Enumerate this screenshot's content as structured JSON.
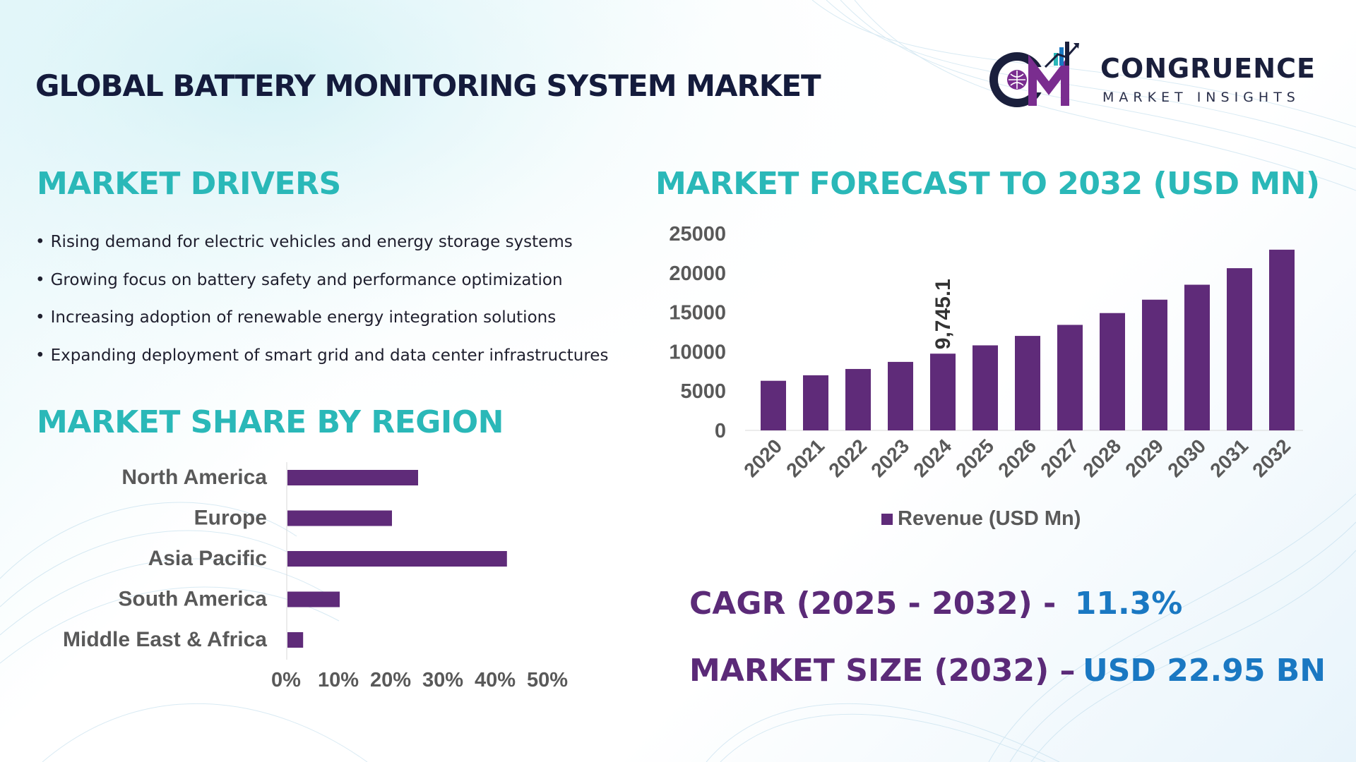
{
  "header": {
    "title": "GLOBAL BATTERY MONITORING SYSTEM MARKET"
  },
  "logo": {
    "monogram": "CM",
    "name": "CONGRUENCE",
    "tagline": "MARKET INSIGHTS"
  },
  "drivers": {
    "title": "MARKET DRIVERS",
    "bullet": "•",
    "items": [
      "Rising demand for electric vehicles and energy storage systems",
      "Growing focus on battery safety and performance optimization",
      "Increasing adoption of renewable energy integration solutions",
      "Expanding deployment of smart grid and data center infrastructures"
    ]
  },
  "region": {
    "title": "MARKET SHARE BY REGION"
  },
  "forecast": {
    "title": "MARKET FORECAST TO 2032 (USD MN)"
  },
  "kpis": {
    "cagr_label": "CAGR (2025 - 2032) -",
    "cagr_value": "11.3%",
    "size_label": "MARKET SIZE (2032) –",
    "size_value": "USD 22.95 BN"
  },
  "colors": {
    "bar": "#5f2b79",
    "accent": "#2ab8b8",
    "kpi_label": "#5b2a78",
    "kpi_value": "#1a78c2",
    "axis_text": "#595959"
  },
  "chart_data": [
    {
      "type": "bar",
      "orientation": "horizontal",
      "title": "MARKET SHARE BY REGION",
      "categories": [
        "North America",
        "Europe",
        "Asia Pacific",
        "South America",
        "Middle East & Africa"
      ],
      "values": [
        25,
        20,
        42,
        10,
        3
      ],
      "unit": "%",
      "xlim": [
        0,
        50
      ],
      "xticks": [
        "0%",
        "10%",
        "20%",
        "30%",
        "40%",
        "50%"
      ],
      "grid": false,
      "legend": "none"
    },
    {
      "type": "bar",
      "orientation": "vertical",
      "title": "MARKET FORECAST TO 2032 (USD MN)",
      "categories": [
        "2020",
        "2021",
        "2022",
        "2023",
        "2024",
        "2025",
        "2026",
        "2027",
        "2028",
        "2029",
        "2030",
        "2031",
        "2032"
      ],
      "series": [
        {
          "name": "Revenue (USD Mn)",
          "values": [
            6300,
            7000,
            7800,
            8700,
            9745.1,
            10800,
            12000,
            13400,
            14900,
            16600,
            18500,
            20600,
            22950
          ]
        }
      ],
      "data_labels": [
        {
          "index": 4,
          "text": "9,745.1"
        }
      ],
      "ylim": [
        0,
        25000
      ],
      "yticks": [
        "0",
        "5000",
        "10000",
        "15000",
        "20000",
        "25000"
      ],
      "legend": "bottom-center",
      "grid": false
    }
  ]
}
